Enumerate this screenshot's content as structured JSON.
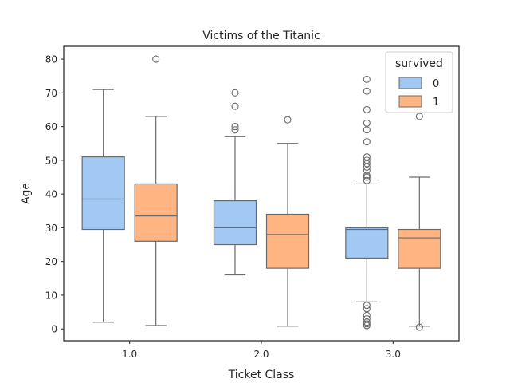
{
  "chart_data": {
    "type": "box",
    "title": "Victims of the Titanic",
    "xlabel": "Ticket Class",
    "ylabel": "Age",
    "categories": [
      "1.0",
      "2.0",
      "3.0"
    ],
    "ylim": [
      -3.5,
      83.8
    ],
    "yticks": [
      0,
      10,
      20,
      30,
      40,
      50,
      60,
      70,
      80
    ],
    "grid": false,
    "legend": {
      "title": "survived",
      "position": "top-right",
      "entries": [
        "0",
        "1"
      ]
    },
    "series": [
      {
        "name": "0",
        "color": "#a1c9f4",
        "boxes": [
          {
            "category": "1.0",
            "whisker_low": 2,
            "q1": 29.5,
            "median": 38.5,
            "q3": 51,
            "whisker_high": 71,
            "outliers": []
          },
          {
            "category": "2.0",
            "whisker_low": 16,
            "q1": 25,
            "median": 30,
            "q3": 38,
            "whisker_high": 57,
            "outliers": [
              59,
              60,
              66,
              70
            ]
          },
          {
            "category": "3.0",
            "whisker_low": 8,
            "q1": 21,
            "median": 29.5,
            "q3": 30,
            "whisker_high": 43,
            "outliers": [
              1,
              1.5,
              2,
              3,
              4,
              6,
              7,
              44,
              45,
              45.5,
              47,
              48,
              49,
              50,
              51,
              55.5,
              59,
              61,
              65,
              70.5,
              74
            ]
          }
        ]
      },
      {
        "name": "1",
        "color": "#ffb482",
        "boxes": [
          {
            "category": "1.0",
            "whisker_low": 1,
            "q1": 26,
            "median": 33.5,
            "q3": 43,
            "whisker_high": 63,
            "outliers": [
              80
            ]
          },
          {
            "category": "2.0",
            "whisker_low": 0.8,
            "q1": 18,
            "median": 28,
            "q3": 34,
            "whisker_high": 55,
            "outliers": [
              62
            ]
          },
          {
            "category": "3.0",
            "whisker_low": 0.8,
            "q1": 18,
            "median": 27,
            "q3": 29.5,
            "whisker_high": 45,
            "outliers": [
              0.5,
              63
            ]
          }
        ]
      }
    ]
  }
}
